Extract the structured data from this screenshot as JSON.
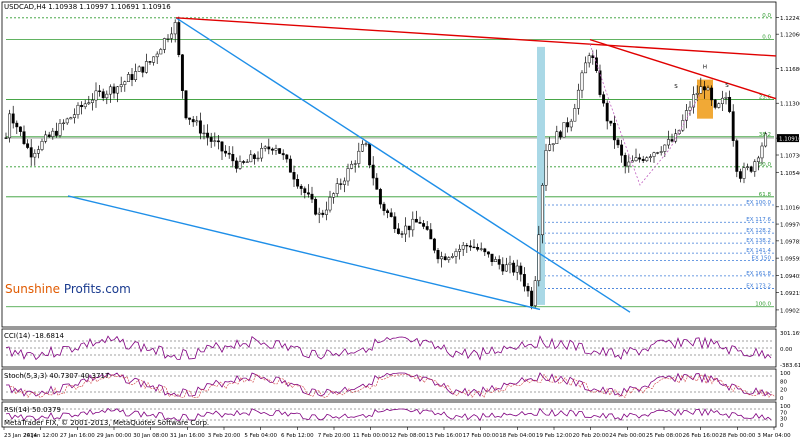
{
  "window": {
    "symbol_title": "USDCAD,H4",
    "ohlc": "1.10938 1.10997 1.10691 1.10916",
    "brand_word1": "Sunshine",
    "brand_word2": "Profits.com",
    "copyright": "MetaTrader FIX, © 2001-2013, MetaQuotes Software Corp."
  },
  "colors": {
    "brand_orange": "#e05a00",
    "brand_blue": "#1a3b8f",
    "candle": "#000000",
    "channel": "#1f8fe8",
    "resistance": "#e00000",
    "fib": "#2e9a2e",
    "fib_ext": "#3a7ad8",
    "highlight_blue": "#a9d8e6",
    "highlight_orange": "#f0a020",
    "indicator": "#800080"
  },
  "chart_data": [
    {
      "type": "candlestick",
      "title": "USDCAD,H4",
      "ylim": [
        1.0887,
        1.1237
      ],
      "price_ticks": [
        "1.12242",
        "1.12060",
        "1.11680",
        "1.11300",
        "1.10916",
        "1.10730",
        "1.10540",
        "1.10160",
        "1.09970",
        "1.09785",
        "1.09595",
        "1.09405",
        "1.09215",
        "1.09025"
      ],
      "current_price": 1.10916,
      "time_ticks": [
        "23 Jan 2014",
        "24 Jan 12:00",
        "27 Jan 16:00",
        "29 Jan 00:00",
        "30 Jan 08:00",
        "31 Jan 16:00",
        "3 Feb 20:00",
        "5 Feb 04:00",
        "6 Feb 12:00",
        "7 Feb 20:00",
        "11 Feb 00:00",
        "12 Feb 08:00",
        "13 Feb 16:00",
        "17 Feb 00:00",
        "18 Feb 04:00",
        "19 Feb 12:00",
        "20 Feb 20:00",
        "24 Feb 00:00",
        "25 Feb 08:00",
        "26 Feb 16:00",
        "28 Feb 00:00",
        "3 Mar 04:00"
      ],
      "fib_levels": [
        {
          "label": "0.0",
          "price": 1.1224
        },
        {
          "label": "0.0",
          "price": 1.12
        },
        {
          "label": "23.6",
          "price": 1.1134
        },
        {
          "label": "38.2",
          "price": 1.1093
        },
        {
          "label": "50.0",
          "price": 1.106
        },
        {
          "label": "61.8",
          "price": 1.1027
        },
        {
          "label": "EX 100.0",
          "price": 1.1018
        },
        {
          "label": "EX 117.6",
          "price": 1.0999
        },
        {
          "label": "EX 128.2",
          "price": 1.0987
        },
        {
          "label": "EX 138.2",
          "price": 1.0976
        },
        {
          "label": "EX 141.4",
          "price": 1.0965
        },
        {
          "label": "EX 150",
          "price": 1.0957
        },
        {
          "label": "EX 161.8",
          "price": 1.094
        },
        {
          "label": "EX 173.2",
          "price": 1.0926
        },
        {
          "label": "100.0",
          "price": 1.0906
        }
      ],
      "annotations": [
        "S",
        "H",
        "S"
      ]
    },
    {
      "type": "line",
      "title": "CCI(14) -18.6814",
      "axis_ticks": [
        "301.1698",
        "0.00",
        "-383.6146"
      ]
    },
    {
      "type": "line",
      "title": "Stoch(5,3,3) 40.7307 40.3717",
      "axis_ticks": [
        "100",
        "80",
        "20",
        "0"
      ]
    },
    {
      "type": "line",
      "title": "RSI(14) 50.0379",
      "axis_ticks": [
        "100",
        "70",
        "30",
        "0"
      ]
    }
  ]
}
